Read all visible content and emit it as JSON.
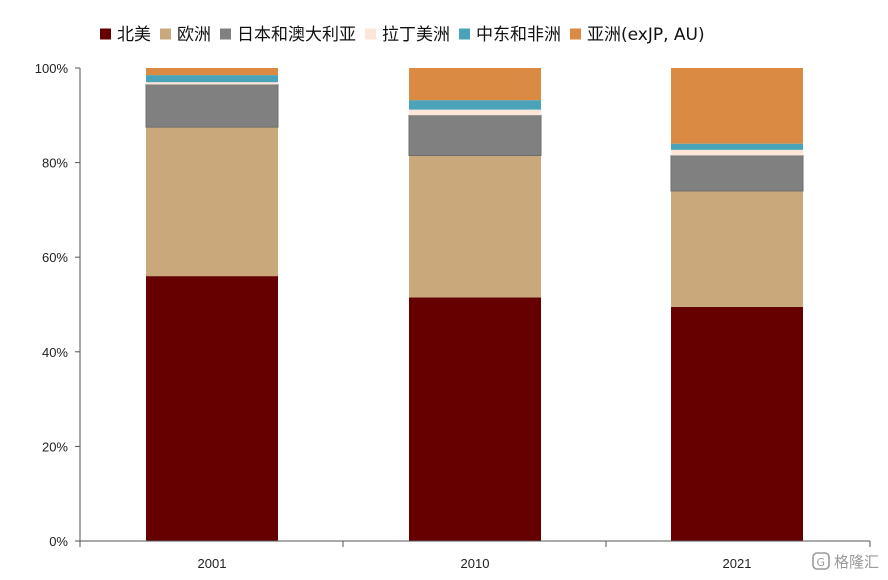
{
  "chart_data": {
    "type": "bar",
    "stacked": true,
    "categories": [
      "2001",
      "2010",
      "2021"
    ],
    "series": [
      {
        "name": "北美",
        "color": "#660000",
        "values": [
          56,
          51.5,
          49.5
        ]
      },
      {
        "name": "欧洲",
        "color": "#c9a97b",
        "values": [
          31.5,
          30,
          24.5
        ]
      },
      {
        "name": "日本和澳大利亚",
        "color": "#808080",
        "values": [
          9,
          8.5,
          7.5
        ]
      },
      {
        "name": "拉丁美洲",
        "color": "#fce6da",
        "values": [
          0.5,
          1.2,
          1.2
        ]
      },
      {
        "name": "中东和非洲",
        "color": "#4aa3b9",
        "values": [
          1.5,
          2,
          1.3
        ]
      },
      {
        "name": "亚洲(exJP, AU)",
        "color": "#db8a44",
        "values": [
          1.5,
          6.8,
          16
        ]
      }
    ],
    "ylim": [
      0,
      100
    ],
    "yticks": [
      "0%",
      "20%",
      "40%",
      "60%",
      "80%",
      "100%"
    ],
    "legend_position": "top",
    "grid": false
  },
  "watermark": {
    "text": "格隆汇",
    "icon": "glh-logo-icon"
  }
}
